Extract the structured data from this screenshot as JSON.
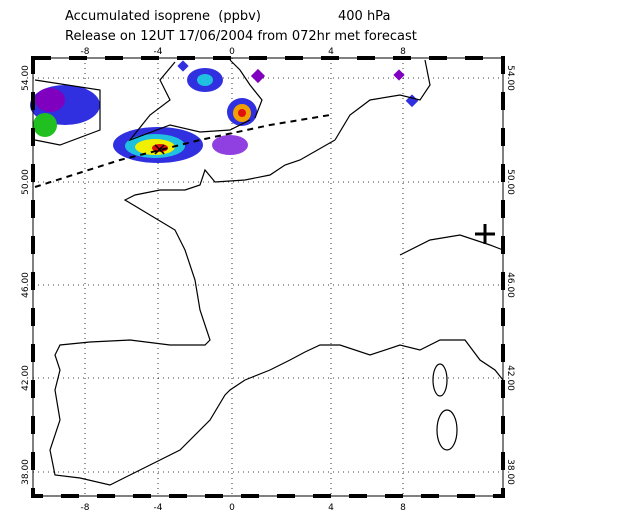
{
  "title": "Accumulated isoprene  (ppbv)",
  "level": "400 hPa",
  "subtitle": "Release on 12UT 17/06/2004 from 072hr met forecast",
  "x_ticks": [
    "-8",
    "-4",
    "0",
    "4",
    "8"
  ],
  "y_ticks": [
    "54.00",
    "50.00",
    "46.00",
    "42.00",
    "38.00"
  ]
}
